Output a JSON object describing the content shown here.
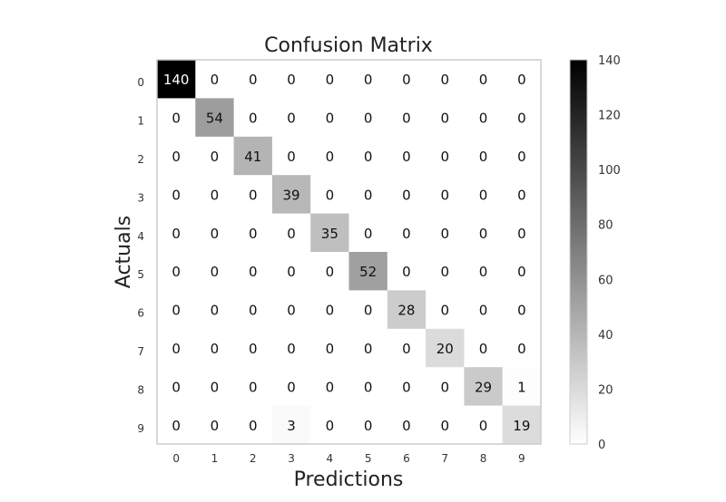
{
  "chart_data": {
    "type": "heatmap",
    "title": "Confusion Matrix",
    "xlabel": "Predictions",
    "ylabel": "Actuals",
    "x_categories": [
      "0",
      "1",
      "2",
      "3",
      "4",
      "5",
      "6",
      "7",
      "8",
      "9"
    ],
    "y_categories": [
      "0",
      "1",
      "2",
      "3",
      "4",
      "5",
      "6",
      "7",
      "8",
      "9"
    ],
    "values": [
      [
        140,
        0,
        0,
        0,
        0,
        0,
        0,
        0,
        0,
        0
      ],
      [
        0,
        54,
        0,
        0,
        0,
        0,
        0,
        0,
        0,
        0
      ],
      [
        0,
        0,
        41,
        0,
        0,
        0,
        0,
        0,
        0,
        0
      ],
      [
        0,
        0,
        0,
        39,
        0,
        0,
        0,
        0,
        0,
        0
      ],
      [
        0,
        0,
        0,
        0,
        35,
        0,
        0,
        0,
        0,
        0
      ],
      [
        0,
        0,
        0,
        0,
        0,
        52,
        0,
        0,
        0,
        0
      ],
      [
        0,
        0,
        0,
        0,
        0,
        0,
        28,
        0,
        0,
        0
      ],
      [
        0,
        0,
        0,
        0,
        0,
        0,
        0,
        20,
        0,
        0
      ],
      [
        0,
        0,
        0,
        0,
        0,
        0,
        0,
        0,
        29,
        1
      ],
      [
        0,
        0,
        0,
        3,
        0,
        0,
        0,
        0,
        0,
        19
      ]
    ],
    "colormap": "greys",
    "color_low": "#ffffff",
    "color_high": "#000000",
    "vmin": 0,
    "vmax": 140,
    "colorbar_ticks": [
      "0",
      "20",
      "40",
      "60",
      "80",
      "100",
      "120",
      "140"
    ],
    "grid": false,
    "legend": "colorbar-right"
  }
}
